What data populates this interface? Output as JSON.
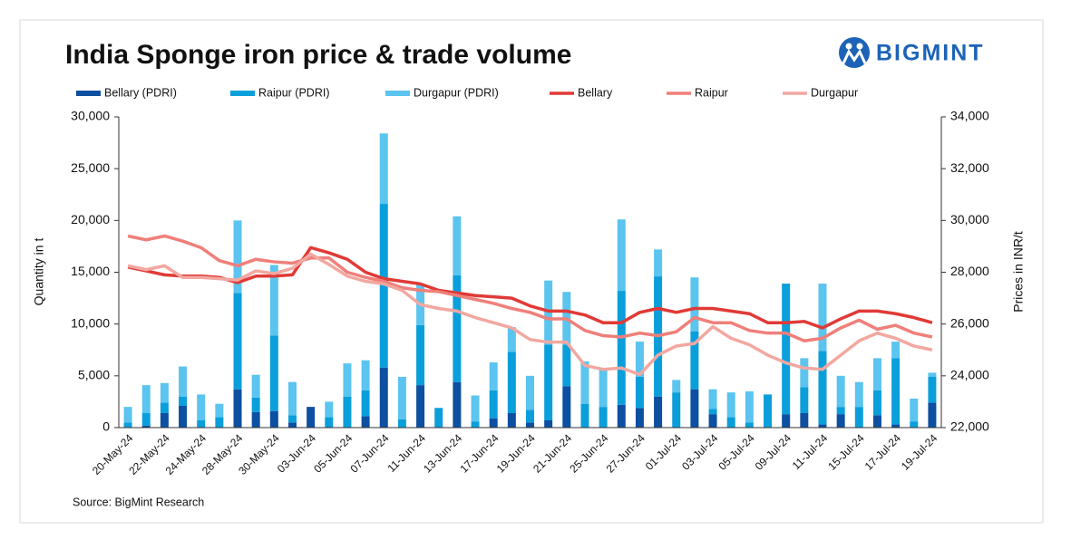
{
  "brand": "BIGMINT",
  "chart_data": {
    "type": "bar",
    "title": "India Sponge iron price & trade volume",
    "source": "Source: BigMint Research",
    "ylabel": "Quantity in t",
    "y2label": "Prices in INR/t",
    "stacked": true,
    "legend": "top",
    "categories": [
      "20-May-24",
      null,
      "22-May-24",
      null,
      "24-May-24",
      null,
      "28-May-24",
      null,
      "30-May-24",
      null,
      "03-Jun-24",
      null,
      "05-Jun-24",
      null,
      "07-Jun-24",
      null,
      "11-Jun-24",
      null,
      "13-Jun-24",
      null,
      "17-Jun-24",
      null,
      "19-Jun-24",
      null,
      "21-Jun-24",
      null,
      "25-Jun-24",
      null,
      "27-Jun-24",
      null,
      "01-Jul-24",
      null,
      "03-Jul-24",
      null,
      "05-Jul-24",
      null,
      "09-Jul-24",
      null,
      "11-Jul-24",
      null,
      "15-Jul-24",
      null,
      "17-Jul-24",
      null,
      "19-Jul-24"
    ],
    "ylim": [
      0,
      30000
    ],
    "yticks": [
      0,
      {
        "value": 5000,
        "label": "5,000"
      },
      {
        "value": 10000,
        "label": "10,000"
      },
      {
        "value": 15000,
        "label": "15,000"
      },
      {
        "value": 20000,
        "label": "20,000"
      },
      {
        "value": 25000,
        "label": "25,000"
      },
      {
        "value": 30000,
        "label": "30,000"
      }
    ],
    "y2lim": [
      22000,
      34000
    ],
    "y2ticks": [
      {
        "value": 22000,
        "label": "22,000"
      },
      {
        "value": 24000,
        "label": "24,000"
      },
      {
        "value": 26000,
        "label": "26,000"
      },
      {
        "value": 28000,
        "label": "28,000"
      },
      {
        "value": 30000,
        "label": "30,000"
      },
      {
        "value": 32000,
        "label": "32,000"
      },
      {
        "value": 34000,
        "label": "34,000"
      }
    ],
    "series": [
      {
        "name": "Bellary (PDRI)",
        "type": "bar",
        "color": "#0d4fa0",
        "values": [
          0,
          200,
          1400,
          2100,
          0,
          0,
          3700,
          1500,
          1600,
          500,
          2000,
          0,
          0,
          1100,
          5800,
          0,
          4100,
          0,
          4400,
          0,
          900,
          1400,
          500,
          700,
          4000,
          0,
          0,
          2200,
          1900,
          3000,
          0,
          3700,
          1300,
          0,
          0,
          0,
          1300,
          1400,
          300,
          1300,
          0,
          1200,
          300,
          0,
          2400
        ]
      },
      {
        "name": "Raipur (PDRI)",
        "type": "bar",
        "color": "#0a9fdb",
        "values": [
          500,
          1200,
          1000,
          900,
          700,
          1000,
          9300,
          1400,
          7300,
          700,
          0,
          1000,
          3000,
          2500,
          15800,
          800,
          5800,
          1900,
          10300,
          600,
          2700,
          5900,
          1200,
          7300,
          4000,
          2300,
          2000,
          11000,
          3000,
          11600,
          3400,
          5600,
          500,
          1000,
          500,
          3200,
          12600,
          2500,
          7100,
          700,
          2000,
          2400,
          6400,
          600,
          2500
        ]
      },
      {
        "name": "Durgapur (PDRI)",
        "type": "bar",
        "color": "#5bc4ef",
        "values": [
          1500,
          2700,
          1900,
          2900,
          2500,
          1300,
          7000,
          2200,
          6800,
          3200,
          0,
          1500,
          3200,
          2900,
          6800,
          4100,
          4000,
          0,
          5700,
          2500,
          2700,
          2400,
          3300,
          6200,
          5100,
          4100,
          3600,
          6900,
          3400,
          2600,
          1200,
          5200,
          1900,
          2400,
          3000,
          0,
          0,
          2800,
          6500,
          3000,
          2400,
          3100,
          1600,
          2200,
          400
        ]
      },
      {
        "name": "Bellary",
        "type": "line",
        "axis": "y2",
        "color": "#e03a36",
        "values": [
          28200,
          28050,
          27900,
          27850,
          27850,
          27800,
          27600,
          27850,
          27850,
          27900,
          28950,
          28750,
          28500,
          28000,
          27750,
          27650,
          27550,
          27300,
          27200,
          27100,
          27050,
          27000,
          26700,
          26500,
          26500,
          26350,
          26050,
          26050,
          26450,
          26600,
          26450,
          26600,
          26600,
          26500,
          26400,
          26050,
          26050,
          26100,
          25850,
          26200,
          26500,
          26500,
          26400,
          26250,
          26050
        ]
      },
      {
        "name": "Raipur",
        "type": "line",
        "axis": "y2",
        "color": "#ef7f7a",
        "values": [
          29400,
          29250,
          29400,
          29200,
          28950,
          28450,
          28250,
          28500,
          28400,
          28350,
          28550,
          28550,
          28000,
          27800,
          27650,
          27400,
          27300,
          27250,
          27100,
          26950,
          26800,
          26600,
          26450,
          26200,
          26200,
          25750,
          25550,
          25500,
          25650,
          25550,
          25700,
          26250,
          26050,
          26050,
          25750,
          25650,
          25650,
          25350,
          25450,
          25850,
          26150,
          25800,
          25950,
          25650,
          25500
        ]
      },
      {
        "name": "Durgapur",
        "type": "line",
        "axis": "y2",
        "color": "#f2a7a0",
        "values": [
          28250,
          28100,
          28250,
          27800,
          27800,
          27750,
          27700,
          28050,
          27950,
          28150,
          28700,
          28300,
          27850,
          27650,
          27550,
          27300,
          26750,
          26600,
          26500,
          26250,
          26050,
          25850,
          25400,
          25300,
          25300,
          24400,
          24250,
          24300,
          24050,
          24800,
          25150,
          25250,
          25900,
          25450,
          25200,
          24800,
          24500,
          24300,
          24250,
          24800,
          25350,
          25650,
          25450,
          25150,
          25000
        ]
      }
    ]
  }
}
